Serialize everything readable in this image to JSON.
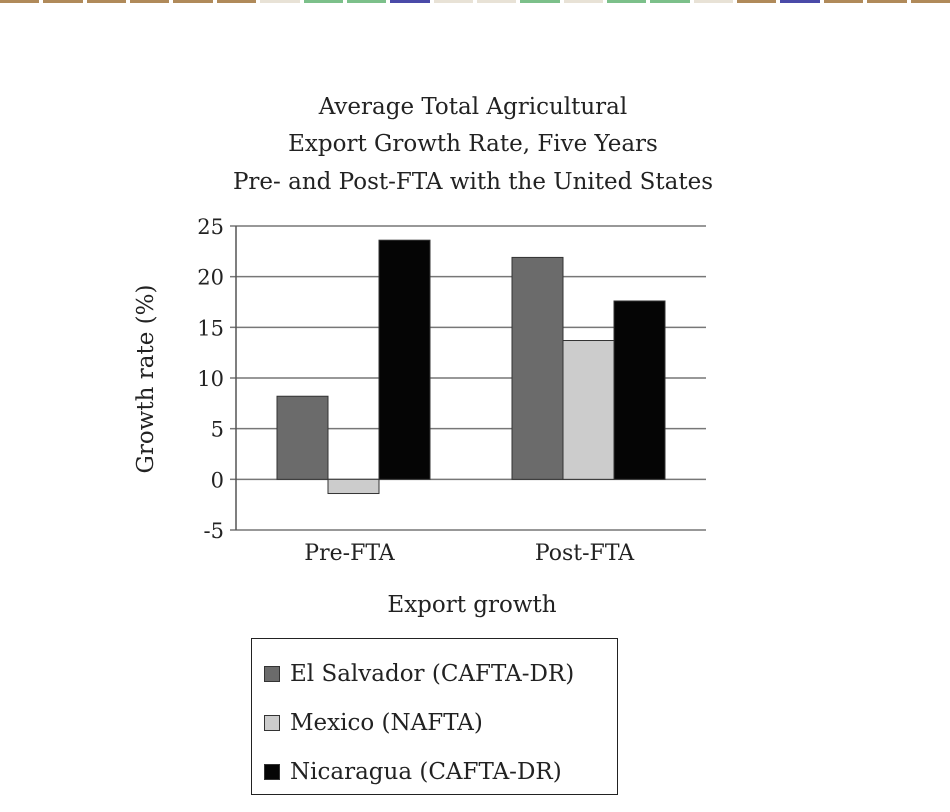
{
  "decor": {
    "strip_colors": [
      "#b08a5a",
      "#b08a5a",
      "#b08a5a",
      "#b08a5a",
      "#b08a5a",
      "#b08a5a",
      "#e8e2d6",
      "#7cc08a",
      "#7cc08a",
      "#4a4aa8",
      "#e8e2d6",
      "#e8e2d6",
      "#7cc08a",
      "#e8e2d6",
      "#7cc08a",
      "#7cc08a",
      "#e8e2d6",
      "#b08a5a",
      "#4a4aa8",
      "#b08a5a",
      "#b08a5a",
      "#b08a5a"
    ]
  },
  "chart_data": {
    "type": "bar",
    "title_lines": [
      "Average Total Agricultural",
      "Export Growth Rate, Five Years",
      "Pre- and Post-FTA with the United States"
    ],
    "xlabel": "Export growth",
    "ylabel": "Growth rate (%)",
    "categories": [
      "Pre-FTA",
      "Post-FTA"
    ],
    "ylim": [
      -5,
      25
    ],
    "yticks": [
      25,
      20,
      15,
      10,
      5,
      0,
      -5
    ],
    "grid": true,
    "legend_position": "bottom",
    "series": [
      {
        "name": "El Salvador (CAFTA-DR)",
        "values": [
          8.2,
          21.9
        ],
        "color": "#6b6b6b"
      },
      {
        "name": "Mexico (NAFTA)",
        "values": [
          -1.4,
          13.7
        ],
        "color": "#cccccc"
      },
      {
        "name": "Nicaragua (CAFTA-DR)",
        "values": [
          23.6,
          17.6
        ],
        "color": "#050505"
      }
    ]
  }
}
